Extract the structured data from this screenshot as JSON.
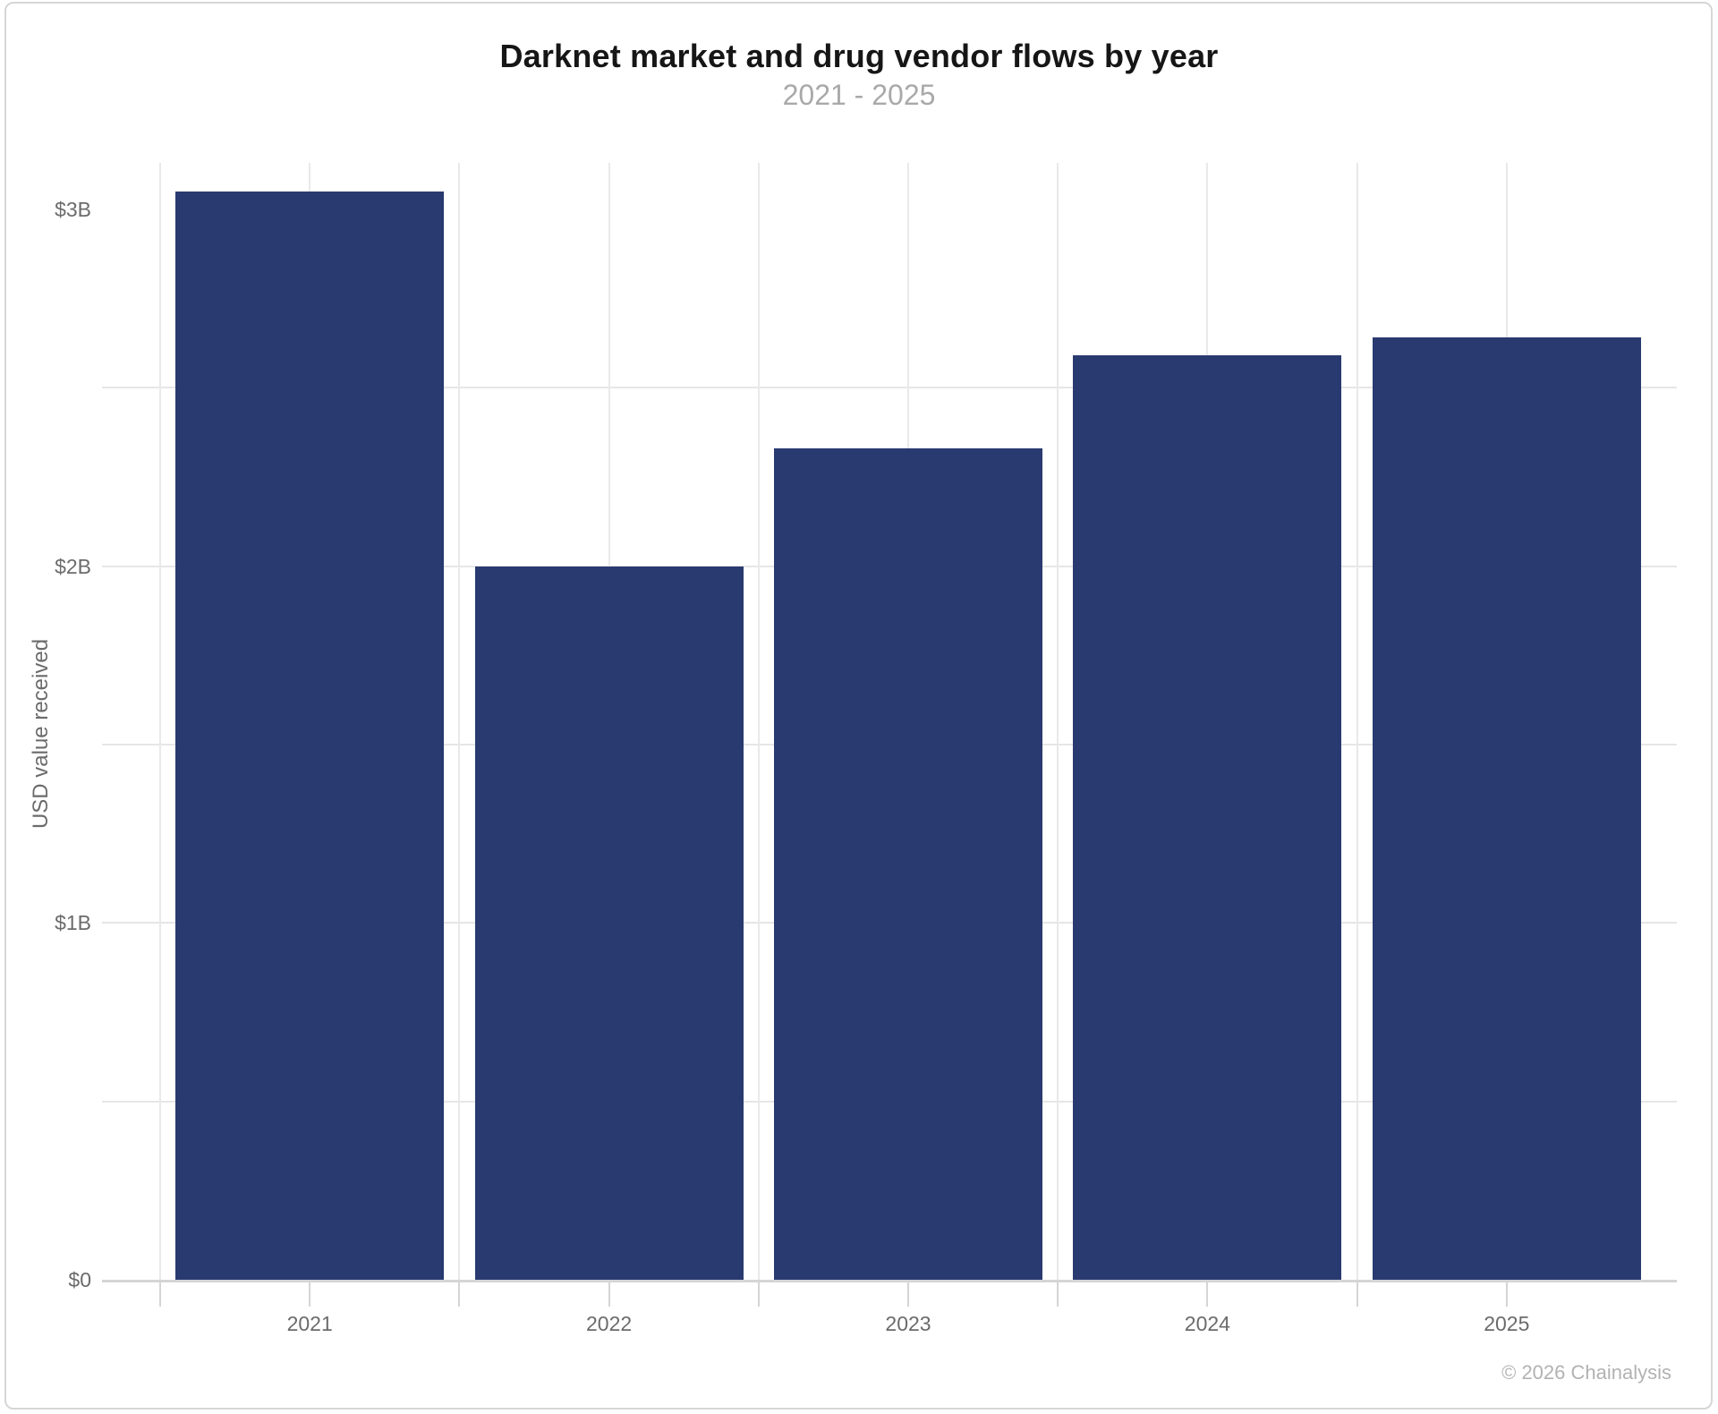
{
  "chart_data": {
    "type": "bar",
    "title": "Darknet market and drug vendor flows by year",
    "subtitle": "2021 - 2025",
    "ylabel": "USD value received",
    "credit": "© 2026 Chainalysis",
    "categories": [
      "2021",
      "2022",
      "2023",
      "2024",
      "2025"
    ],
    "values": [
      3.05,
      2.0,
      2.33,
      2.59,
      2.64
    ],
    "values_unit": "billions of USD received",
    "ylim": [
      0,
      3.13
    ],
    "yticks": [
      {
        "value": 0,
        "label": "$0"
      },
      {
        "value": 1,
        "label": "$1B"
      },
      {
        "value": 2,
        "label": "$2B"
      },
      {
        "value": 3,
        "label": "$3B"
      }
    ],
    "grid_step": 0.5,
    "grid": "on",
    "legend": "none",
    "bar_color": "#293a70"
  }
}
